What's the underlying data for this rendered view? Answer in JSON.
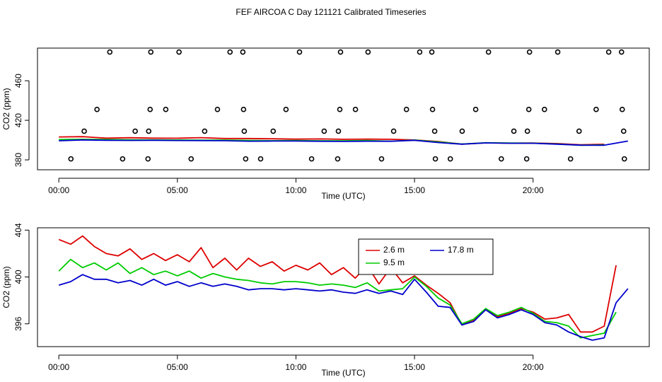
{
  "title": "FEF AIRCOA C  Day 121121  Calibrated Timeseries",
  "chart_data": [
    {
      "type": "line",
      "xlabel": "Time (UTC)",
      "ylabel": "CO2 (ppm)",
      "xlim": [
        -0.9,
        24.9
      ],
      "ylim": [
        370,
        493
      ],
      "xticks": [
        {
          "value": 0,
          "label": "00:00"
        },
        {
          "value": 5,
          "label": "05:00"
        },
        {
          "value": 10,
          "label": "10:00"
        },
        {
          "value": 15,
          "label": "15:00"
        },
        {
          "value": 20,
          "label": "20:00"
        }
      ],
      "yticks": [
        380,
        420,
        460
      ],
      "x": [
        0,
        1,
        2,
        3,
        4,
        5,
        6,
        7,
        8,
        9,
        10,
        11,
        12,
        13,
        14,
        15,
        16,
        17,
        18,
        19,
        20,
        21,
        22,
        23,
        24
      ],
      "series": [
        {
          "color": "#dd0000",
          "values": [
            403.2,
            403.5,
            402.0,
            402.4,
            402.0,
            401.9,
            402.5,
            401.6,
            401.6,
            401.3,
            401.0,
            401.2,
            400.8,
            401.0,
            400.8,
            400.1,
            398.6,
            395.9,
            397.2,
            396.9,
            397.0,
            396.5,
            395.3,
            395.8,
            null
          ]
        },
        {
          "color": "#00cc00",
          "values": [
            400.5,
            400.8,
            400.6,
            400.3,
            400.2,
            400.1,
            399.9,
            400.0,
            399.7,
            399.4,
            399.6,
            399.3,
            399.3,
            399.5,
            398.9,
            400.0,
            398.2,
            396.0,
            397.3,
            397.0,
            396.9,
            396.1,
            394.8,
            395.2,
            null
          ]
        },
        {
          "color": "#0000cc",
          "values": [
            399.3,
            400.2,
            399.8,
            399.7,
            399.8,
            399.6,
            399.5,
            399.4,
            398.9,
            399.0,
            399.0,
            398.8,
            398.7,
            398.9,
            398.8,
            399.8,
            397.5,
            395.9,
            397.2,
            396.8,
            396.8,
            395.9,
            394.9,
            394.8,
            399.0
          ]
        }
      ],
      "scatter": {
        "color": "#000000",
        "x": [
          2.15,
          3.88,
          5.07,
          7.22,
          7.76,
          10.15,
          11.88,
          13.04,
          15.22,
          15.73,
          18.12,
          19.85,
          21.04,
          23.19,
          23.73,
          1.61,
          3.85,
          4.51,
          6.69,
          7.79,
          9.58,
          11.85,
          12.51,
          14.66,
          15.76,
          17.58,
          19.82,
          20.48,
          22.66,
          23.76,
          1.07,
          3.22,
          3.79,
          6.15,
          7.82,
          9.04,
          11.19,
          11.79,
          14.12,
          15.85,
          17.01,
          19.19,
          19.76,
          21.94,
          23.82,
          0.51,
          2.69,
          3.76,
          5.58,
          7.88,
          8.51,
          10.66,
          11.76,
          13.61,
          15.88,
          16.51,
          18.66,
          19.73,
          21.58,
          23.85
        ],
        "y": [
          489,
          489,
          489,
          489,
          489,
          489,
          489,
          489,
          489,
          489,
          489,
          489,
          489,
          489,
          489,
          431,
          431,
          431,
          431,
          431,
          431,
          431,
          431,
          431,
          431,
          431,
          431,
          431,
          431,
          431,
          409,
          409,
          409,
          409,
          409,
          409,
          409,
          409,
          409,
          409,
          409,
          409,
          409,
          409,
          409,
          381,
          381,
          381,
          381,
          381,
          381,
          381,
          381,
          381,
          381,
          381,
          381,
          381,
          381,
          381
        ]
      }
    },
    {
      "type": "line",
      "xlabel": "Time (UTC)",
      "ylabel": "CO2 (ppm)",
      "xlim": [
        -0.9,
        24.9
      ],
      "ylim": [
        394.05,
        404.2
      ],
      "xticks": [
        {
          "value": 0,
          "label": "00:00"
        },
        {
          "value": 5,
          "label": "05:00"
        },
        {
          "value": 10,
          "label": "10:00"
        },
        {
          "value": 15,
          "label": "15:00"
        },
        {
          "value": 20,
          "label": "20:00"
        }
      ],
      "yticks": [
        396,
        400,
        404
      ],
      "legend": "top-right",
      "x": [
        0,
        0.5,
        1,
        1.5,
        2,
        2.5,
        3,
        3.5,
        4,
        4.5,
        5,
        5.5,
        6,
        6.5,
        7,
        7.5,
        8,
        8.5,
        9,
        9.5,
        10,
        10.5,
        11,
        11.5,
        12,
        12.5,
        13,
        13.5,
        14,
        14.5,
        15,
        15.5,
        16,
        16.5,
        17,
        17.5,
        18,
        18.5,
        19,
        19.5,
        20,
        20.5,
        21,
        21.5,
        22,
        22.5,
        23,
        23.5,
        24
      ],
      "series": [
        {
          "name": "2.6 m",
          "color": "#dd0000",
          "values": [
            403.2,
            402.8,
            403.5,
            402.6,
            402.0,
            401.8,
            402.4,
            401.5,
            402.0,
            401.4,
            401.9,
            401.3,
            402.5,
            400.8,
            401.6,
            400.6,
            401.6,
            400.9,
            401.3,
            400.5,
            401.0,
            400.6,
            401.2,
            400.2,
            400.8,
            399.9,
            401.0,
            399.4,
            400.8,
            399.5,
            400.1,
            399.3,
            398.6,
            397.8,
            395.9,
            396.3,
            397.2,
            396.6,
            396.9,
            397.3,
            397.0,
            396.4,
            396.5,
            396.8,
            395.3,
            395.3,
            395.8,
            401.0,
            null
          ]
        },
        {
          "name": "9.5 m",
          "color": "#00cc00",
          "values": [
            400.5,
            401.5,
            400.8,
            401.2,
            400.6,
            401.2,
            400.3,
            400.8,
            400.2,
            400.5,
            400.1,
            400.5,
            399.9,
            400.3,
            400.0,
            399.8,
            399.7,
            399.5,
            399.4,
            399.6,
            399.6,
            399.5,
            399.3,
            399.4,
            399.3,
            399.1,
            399.5,
            398.8,
            398.9,
            399.0,
            400.0,
            399.2,
            398.2,
            397.6,
            396.0,
            396.4,
            397.3,
            396.7,
            397.0,
            397.4,
            396.9,
            396.2,
            396.1,
            395.8,
            394.8,
            395.0,
            395.2,
            397.0,
            null
          ]
        },
        {
          "name": "17.8 m",
          "color": "#0000cc",
          "values": [
            399.3,
            399.6,
            400.2,
            399.8,
            399.8,
            399.5,
            399.7,
            399.3,
            399.8,
            399.3,
            399.6,
            399.2,
            399.5,
            399.2,
            399.4,
            399.2,
            398.9,
            399.0,
            399.0,
            398.9,
            399.0,
            398.9,
            398.8,
            398.9,
            398.7,
            398.6,
            398.9,
            398.6,
            398.8,
            398.5,
            399.8,
            398.7,
            397.5,
            397.4,
            395.9,
            396.2,
            397.2,
            396.5,
            396.8,
            397.2,
            396.8,
            396.1,
            395.9,
            395.3,
            394.9,
            394.6,
            394.8,
            397.8,
            399.0
          ]
        }
      ]
    }
  ]
}
